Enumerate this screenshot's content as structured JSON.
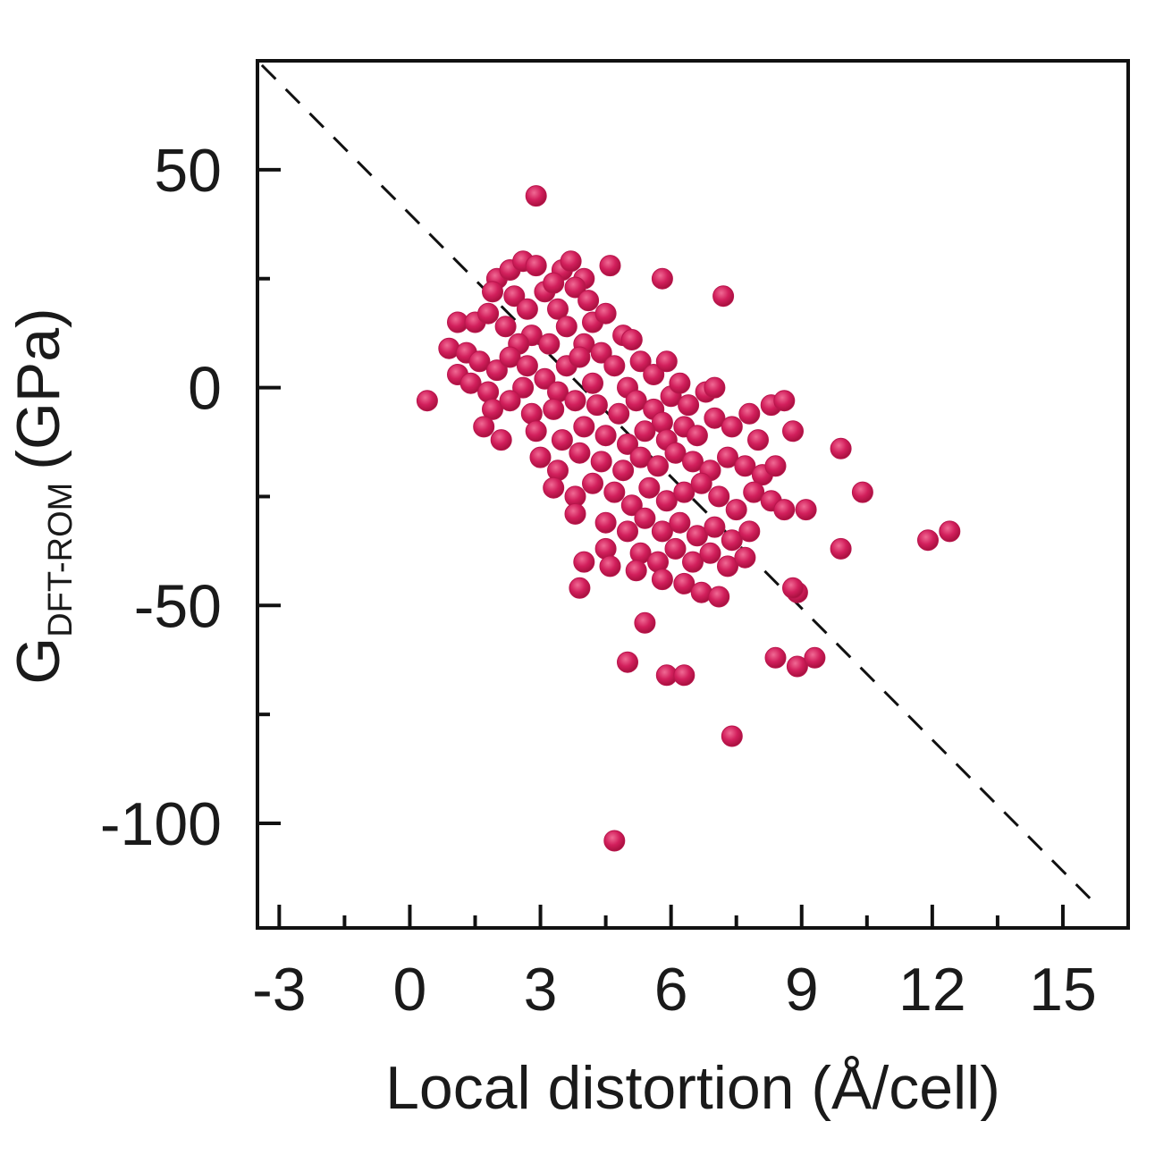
{
  "chart_data": {
    "type": "scatter",
    "xlabel": "Local distortion (Å/cell)",
    "ylabel_main": "G",
    "ylabel_subscript": "DFT-ROM",
    "ylabel_unit": "(GPa)",
    "xlim": [
      -3.5,
      16.5
    ],
    "ylim": [
      -124,
      75
    ],
    "xticks": [
      -3,
      0,
      3,
      6,
      9,
      12,
      15
    ],
    "xtick_labels": [
      "-3",
      "0",
      "3",
      "6",
      "9",
      "12",
      "15"
    ],
    "yticks": [
      50,
      0,
      -50,
      -100
    ],
    "ytick_labels": [
      "50",
      "0",
      "-50",
      "-100"
    ],
    "grid": false,
    "legend": "none",
    "marker_color": "#d21f5c",
    "reference_line": {
      "style": "dashed",
      "color": "#111111",
      "points": [
        [
          -3.4,
          74
        ],
        [
          15.8,
          -119
        ]
      ]
    },
    "series": [
      {
        "points": [
          [
            2.9,
            44
          ],
          [
            4.6,
            28
          ],
          [
            5.8,
            25
          ],
          [
            7.2,
            21
          ],
          [
            2.0,
            25
          ],
          [
            2.3,
            27
          ],
          [
            2.6,
            29
          ],
          [
            2.9,
            28
          ],
          [
            3.5,
            27
          ],
          [
            3.7,
            29
          ],
          [
            4.0,
            25
          ],
          [
            1.9,
            22
          ],
          [
            2.4,
            21
          ],
          [
            3.1,
            22
          ],
          [
            3.3,
            24
          ],
          [
            3.8,
            23
          ],
          [
            4.1,
            20
          ],
          [
            2.7,
            18
          ],
          [
            3.4,
            18
          ],
          [
            1.1,
            15
          ],
          [
            1.5,
            15
          ],
          [
            1.8,
            17
          ],
          [
            2.2,
            14
          ],
          [
            2.8,
            12
          ],
          [
            3.6,
            14
          ],
          [
            4.2,
            15
          ],
          [
            4.5,
            17
          ],
          [
            4.9,
            12
          ],
          [
            5.1,
            11
          ],
          [
            4.0,
            10
          ],
          [
            3.2,
            10
          ],
          [
            2.5,
            10
          ],
          [
            0.9,
            9
          ],
          [
            1.3,
            8
          ],
          [
            1.6,
            6
          ],
          [
            2.0,
            4
          ],
          [
            1.1,
            3
          ],
          [
            1.4,
            1
          ],
          [
            2.3,
            7
          ],
          [
            2.7,
            5
          ],
          [
            3.1,
            2
          ],
          [
            3.6,
            5
          ],
          [
            3.9,
            7
          ],
          [
            4.4,
            8
          ],
          [
            4.7,
            5
          ],
          [
            5.3,
            6
          ],
          [
            5.6,
            3
          ],
          [
            5.9,
            6
          ],
          [
            5.0,
            0
          ],
          [
            4.2,
            1
          ],
          [
            3.4,
            -1
          ],
          [
            2.6,
            0
          ],
          [
            1.8,
            -1
          ],
          [
            0.4,
            -3
          ],
          [
            1.9,
            -5
          ],
          [
            2.3,
            -3
          ],
          [
            2.8,
            -6
          ],
          [
            3.3,
            -5
          ],
          [
            3.8,
            -3
          ],
          [
            4.3,
            -4
          ],
          [
            4.8,
            -6
          ],
          [
            5.2,
            -3
          ],
          [
            5.6,
            -5
          ],
          [
            6.0,
            -2
          ],
          [
            6.4,
            -4
          ],
          [
            6.8,
            -1
          ],
          [
            7.0,
            0
          ],
          [
            6.2,
            1
          ],
          [
            5.8,
            -8
          ],
          [
            1.7,
            -9
          ],
          [
            2.1,
            -12
          ],
          [
            2.9,
            -10
          ],
          [
            3.5,
            -12
          ],
          [
            4.0,
            -9
          ],
          [
            4.5,
            -11
          ],
          [
            5.0,
            -13
          ],
          [
            5.4,
            -10
          ],
          [
            5.9,
            -12
          ],
          [
            6.3,
            -9
          ],
          [
            6.6,
            -11
          ],
          [
            7.0,
            -7
          ],
          [
            7.4,
            -9
          ],
          [
            7.8,
            -6
          ],
          [
            8.3,
            -4
          ],
          [
            8.6,
            -3
          ],
          [
            8.8,
            -10
          ],
          [
            8.0,
            -12
          ],
          [
            3.0,
            -16
          ],
          [
            3.4,
            -19
          ],
          [
            3.9,
            -15
          ],
          [
            4.4,
            -17
          ],
          [
            4.9,
            -19
          ],
          [
            5.3,
            -16
          ],
          [
            5.7,
            -18
          ],
          [
            6.1,
            -15
          ],
          [
            6.5,
            -17
          ],
          [
            6.9,
            -19
          ],
          [
            7.3,
            -16
          ],
          [
            7.7,
            -18
          ],
          [
            8.1,
            -20
          ],
          [
            8.4,
            -18
          ],
          [
            9.9,
            -14
          ],
          [
            3.3,
            -23
          ],
          [
            3.8,
            -25
          ],
          [
            4.2,
            -22
          ],
          [
            4.7,
            -24
          ],
          [
            5.1,
            -27
          ],
          [
            5.5,
            -23
          ],
          [
            5.9,
            -26
          ],
          [
            6.3,
            -24
          ],
          [
            6.7,
            -22
          ],
          [
            7.1,
            -25
          ],
          [
            7.5,
            -28
          ],
          [
            7.9,
            -24
          ],
          [
            8.3,
            -26
          ],
          [
            8.6,
            -28
          ],
          [
            9.1,
            -28
          ],
          [
            10.4,
            -24
          ],
          [
            3.8,
            -29
          ],
          [
            4.5,
            -31
          ],
          [
            5.0,
            -33
          ],
          [
            5.4,
            -30
          ],
          [
            5.8,
            -33
          ],
          [
            6.2,
            -31
          ],
          [
            6.6,
            -34
          ],
          [
            7.0,
            -32
          ],
          [
            7.4,
            -35
          ],
          [
            7.8,
            -33
          ],
          [
            4.5,
            -37
          ],
          [
            5.3,
            -38
          ],
          [
            5.7,
            -40
          ],
          [
            6.1,
            -37
          ],
          [
            6.5,
            -40
          ],
          [
            6.9,
            -38
          ],
          [
            7.3,
            -41
          ],
          [
            7.7,
            -39
          ],
          [
            9.9,
            -37
          ],
          [
            11.9,
            -35
          ],
          [
            12.4,
            -33
          ],
          [
            4.0,
            -40
          ],
          [
            4.6,
            -41
          ],
          [
            5.2,
            -42
          ],
          [
            5.8,
            -44
          ],
          [
            6.3,
            -45
          ],
          [
            6.7,
            -47
          ],
          [
            7.1,
            -48
          ],
          [
            3.9,
            -46
          ],
          [
            8.9,
            -47
          ],
          [
            8.8,
            -46
          ],
          [
            5.4,
            -54
          ],
          [
            5.0,
            -63
          ],
          [
            5.9,
            -66
          ],
          [
            6.3,
            -66
          ],
          [
            8.4,
            -62
          ],
          [
            8.9,
            -64
          ],
          [
            9.3,
            -62
          ],
          [
            7.4,
            -80
          ],
          [
            4.7,
            -104
          ]
        ]
      }
    ]
  }
}
